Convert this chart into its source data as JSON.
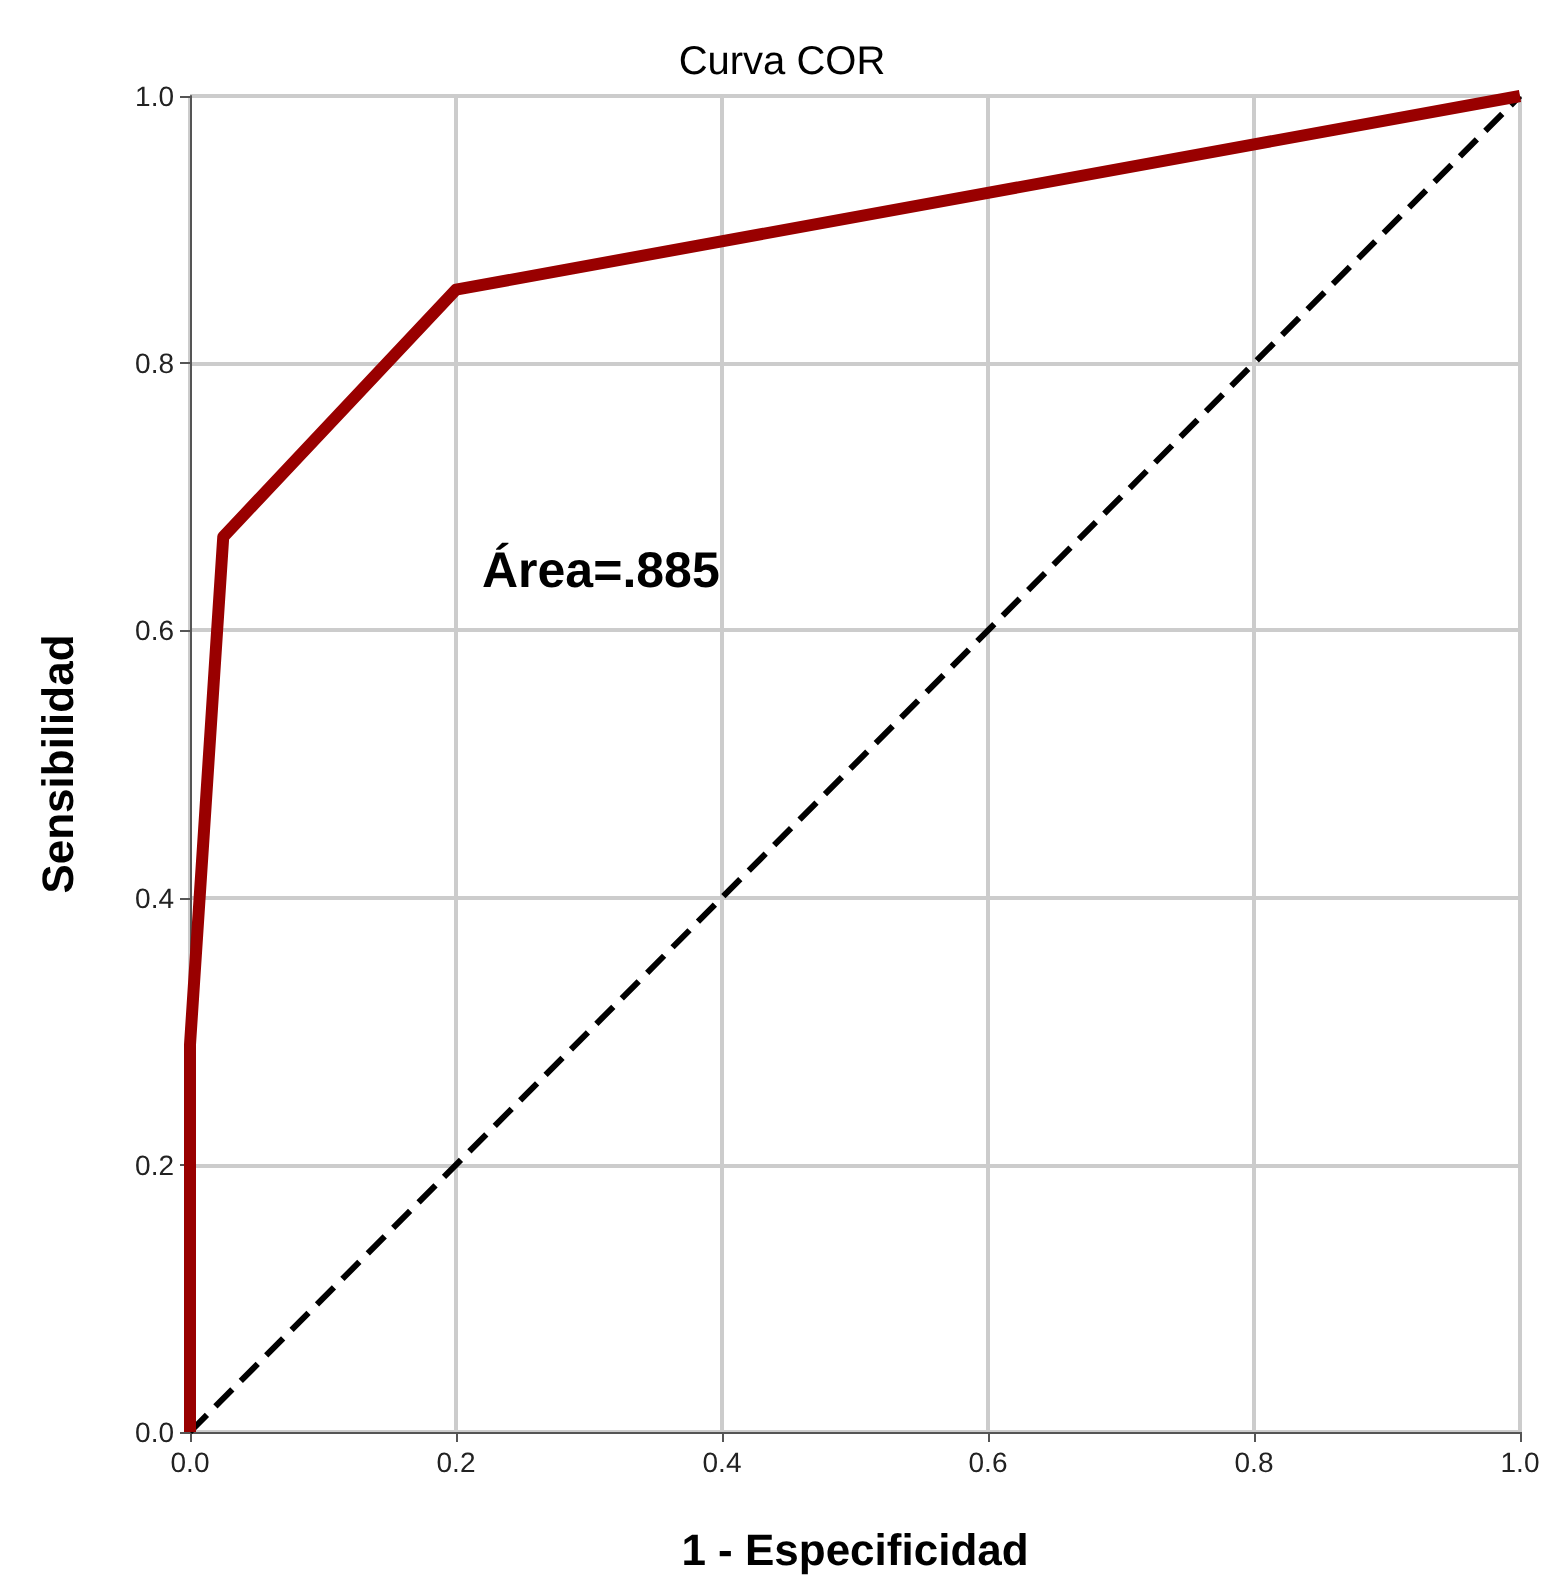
{
  "chart_data": {
    "type": "line",
    "title": "Curva COR",
    "xlabel": "1 - Especificidad",
    "ylabel": "Sensibilidad",
    "series": [
      {
        "color": "#990000",
        "x": [
          0,
          0,
          0.025,
          0.2,
          1
        ],
        "values": [
          0,
          0.29,
          0.67,
          0.855,
          1
        ],
        "line_style": "solid"
      },
      {
        "color": "#000000",
        "x": [
          0,
          1
        ],
        "values": [
          0,
          1
        ],
        "line_style": "dashed"
      }
    ],
    "xlim": [
      0,
      1
    ],
    "ylim": [
      0,
      1
    ],
    "xticks": [
      {
        "value": 0,
        "label": "0.0"
      },
      {
        "value": 0.2,
        "label": "0.2"
      },
      {
        "value": 0.4,
        "label": "0.4"
      },
      {
        "value": 0.6,
        "label": "0.6"
      },
      {
        "value": 0.8,
        "label": "0.8"
      },
      {
        "value": 1,
        "label": "1.0"
      }
    ],
    "yticks": [
      {
        "value": 0,
        "label": "0.0"
      },
      {
        "value": 0.2,
        "label": "0.2"
      },
      {
        "value": 0.4,
        "label": "0.4"
      },
      {
        "value": 0.6,
        "label": "0.6"
      },
      {
        "value": 0.8,
        "label": "0.8"
      },
      {
        "value": 1,
        "label": "1.0"
      }
    ],
    "grid": true,
    "marker": "none",
    "annotations": [
      "Área=.885"
    ]
  }
}
